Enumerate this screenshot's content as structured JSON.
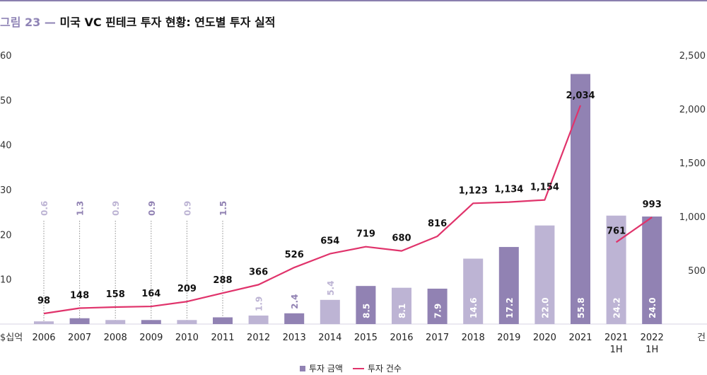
{
  "header": {
    "figure_number": "그림 23 —",
    "title": "미국 VC 핀테크 투자 현황: 연도별 투자 실적"
  },
  "colors": {
    "accent": "#8a7fae",
    "bar_dark": "#9182b3",
    "bar_light": "#bdb4d4",
    "line": "#e0336b"
  },
  "chart_data": {
    "type": "bar+line",
    "categories": [
      "2006",
      "2007",
      "2008",
      "2009",
      "2010",
      "2011",
      "2012",
      "2013",
      "2014",
      "2015",
      "2016",
      "2017",
      "2018",
      "2019",
      "2020",
      "2021",
      "2021\n1H",
      "2022\n1H"
    ],
    "series": [
      {
        "name": "투자 금액",
        "type": "bar",
        "axis": "left",
        "values": [
          0.6,
          1.3,
          0.9,
          0.9,
          0.9,
          1.5,
          1.9,
          2.4,
          5.4,
          8.5,
          8.1,
          7.9,
          14.6,
          17.2,
          22.0,
          55.8,
          24.2,
          24.0
        ],
        "labels": [
          "0.6",
          "1.3",
          "0.9",
          "0.9",
          "0.9",
          "1.5",
          "1.9",
          "2.4",
          "5.4",
          "8.5",
          "8.1",
          "7.9",
          "14.6",
          "17.2",
          "22.0",
          "55.8",
          "24.2",
          "24.0"
        ],
        "shade": [
          "light",
          "dark",
          "light",
          "dark",
          "light",
          "dark",
          "light",
          "dark",
          "light",
          "dark",
          "light",
          "dark",
          "light",
          "dark",
          "light",
          "dark",
          "light",
          "dark"
        ]
      },
      {
        "name": "투자 건수",
        "type": "line",
        "axis": "right",
        "values": [
          98,
          148,
          158,
          164,
          209,
          288,
          366,
          526,
          654,
          719,
          680,
          816,
          1123,
          1134,
          1154,
          2034,
          761,
          993
        ],
        "labels": [
          "98",
          "148",
          "158",
          "164",
          "209",
          "288",
          "366",
          "526",
          "654",
          "719",
          "680",
          "816",
          "1,123",
          "1,134",
          "1,154",
          "2,034",
          "761",
          "993"
        ]
      }
    ],
    "y_left": {
      "unit": "$십억",
      "ticks": [
        "10",
        "20",
        "30",
        "40",
        "50",
        "60"
      ],
      "ylim": [
        0,
        60
      ]
    },
    "y_right": {
      "unit": "건",
      "ticks": [
        "500",
        "1,000",
        "1,500",
        "2,000",
        "2,500"
      ],
      "ylim": [
        0,
        2500
      ]
    },
    "grid": false,
    "legend_position": "bottom-center"
  }
}
